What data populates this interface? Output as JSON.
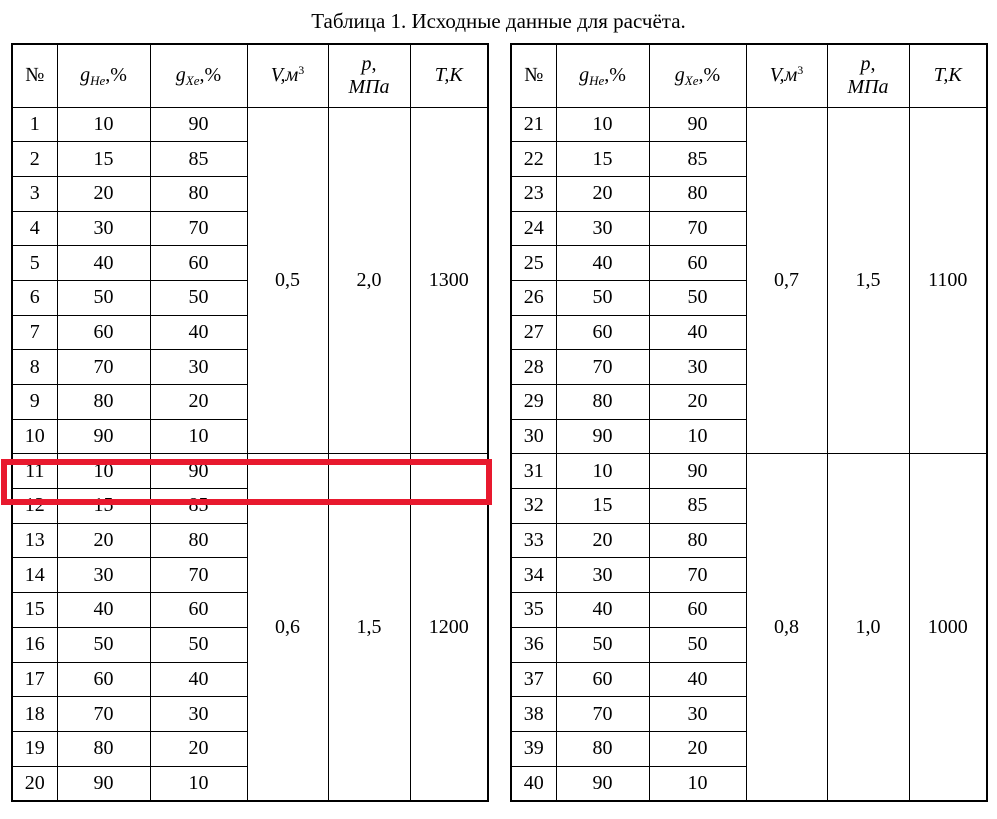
{
  "title": "Таблица 1. Исходные данные для расчёта.",
  "highlight": {
    "highlighted_row": "11",
    "color": "#e8192e"
  },
  "columns": [
    {
      "key": "num",
      "segments": [
        {
          "k": "t",
          "v": "№"
        }
      ]
    },
    {
      "key": "ghe",
      "segments": [
        {
          "k": "i",
          "v": "g"
        },
        {
          "k": "subi",
          "v": "He"
        },
        {
          "k": "t",
          "v": ",%"
        }
      ]
    },
    {
      "key": "gxe",
      "segments": [
        {
          "k": "i",
          "v": "g"
        },
        {
          "k": "subi",
          "v": "Xe"
        },
        {
          "k": "t",
          "v": ",%"
        }
      ]
    },
    {
      "key": "v",
      "segments": [
        {
          "k": "i",
          "v": "V"
        },
        {
          "k": "i",
          "v": ",м"
        },
        {
          "k": "sup",
          "v": "3"
        }
      ]
    },
    {
      "key": "p",
      "segments": [
        {
          "k": "i",
          "v": "p"
        },
        {
          "k": "t",
          "v": ","
        },
        {
          "k": "br"
        },
        {
          "k": "i",
          "v": "МПа"
        }
      ]
    },
    {
      "key": "t",
      "segments": [
        {
          "k": "i",
          "v": "T"
        },
        {
          "k": "i",
          "v": ",К"
        }
      ]
    }
  ],
  "tables": [
    {
      "name": "variants-1-20",
      "blocks": [
        {
          "v": "0,5",
          "p": "2,0",
          "t": "1300"
        },
        {
          "v": "0,6",
          "p": "1,5",
          "t": "1200"
        }
      ],
      "rows": [
        [
          "1",
          "10",
          "90"
        ],
        [
          "2",
          "15",
          "85"
        ],
        [
          "3",
          "20",
          "80"
        ],
        [
          "4",
          "30",
          "70"
        ],
        [
          "5",
          "40",
          "60"
        ],
        [
          "6",
          "50",
          "50"
        ],
        [
          "7",
          "60",
          "40"
        ],
        [
          "8",
          "70",
          "30"
        ],
        [
          "9",
          "80",
          "20"
        ],
        [
          "10",
          "90",
          "10"
        ],
        [
          "11",
          "10",
          "90"
        ],
        [
          "12",
          "15",
          "85"
        ],
        [
          "13",
          "20",
          "80"
        ],
        [
          "14",
          "30",
          "70"
        ],
        [
          "15",
          "40",
          "60"
        ],
        [
          "16",
          "50",
          "50"
        ],
        [
          "17",
          "60",
          "40"
        ],
        [
          "18",
          "70",
          "30"
        ],
        [
          "19",
          "80",
          "20"
        ],
        [
          "20",
          "90",
          "10"
        ]
      ]
    },
    {
      "name": "variants-21-40",
      "blocks": [
        {
          "v": "0,7",
          "p": "1,5",
          "t": "1100"
        },
        {
          "v": "0,8",
          "p": "1,0",
          "t": "1000"
        }
      ],
      "rows": [
        [
          "21",
          "10",
          "90"
        ],
        [
          "22",
          "15",
          "85"
        ],
        [
          "23",
          "20",
          "80"
        ],
        [
          "24",
          "30",
          "70"
        ],
        [
          "25",
          "40",
          "60"
        ],
        [
          "26",
          "50",
          "50"
        ],
        [
          "27",
          "60",
          "40"
        ],
        [
          "28",
          "70",
          "30"
        ],
        [
          "29",
          "80",
          "20"
        ],
        [
          "30",
          "90",
          "10"
        ],
        [
          "31",
          "10",
          "90"
        ],
        [
          "32",
          "15",
          "85"
        ],
        [
          "33",
          "20",
          "80"
        ],
        [
          "34",
          "30",
          "70"
        ],
        [
          "35",
          "40",
          "60"
        ],
        [
          "36",
          "50",
          "50"
        ],
        [
          "37",
          "60",
          "40"
        ],
        [
          "38",
          "70",
          "30"
        ],
        [
          "39",
          "80",
          "20"
        ],
        [
          "40",
          "90",
          "10"
        ]
      ]
    }
  ]
}
